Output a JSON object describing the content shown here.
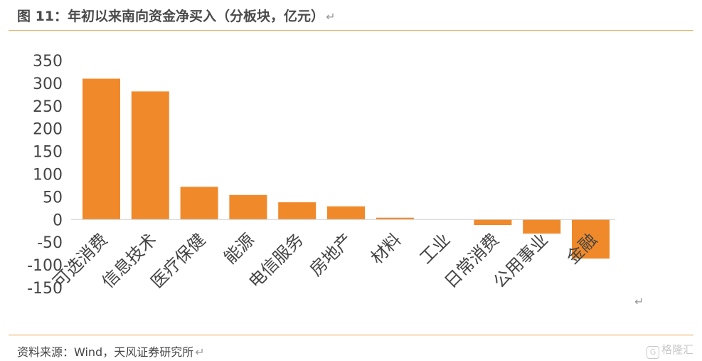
{
  "figure": {
    "title": "图 11：年初以来南向资金净买入（分板块，亿元）",
    "paragraph_mark": "↵",
    "source": "资料来源：Wind，天风证券研究所",
    "watermark": "格隆汇",
    "watermark_icon": "chart-logo-icon"
  },
  "chart_data": {
    "type": "bar",
    "title": "",
    "xlabel": "",
    "ylabel": "",
    "categories": [
      "可选消费",
      "信息技术",
      "医疗保健",
      "能源",
      "电信服务",
      "房地产",
      "材料",
      "工业",
      "日常消费",
      "公用事业",
      "金融"
    ],
    "values": [
      310,
      282,
      72,
      54,
      38,
      29,
      4,
      0,
      -12,
      -31,
      -86
    ],
    "ylim": [
      -150,
      350
    ],
    "yticks": [
      350,
      300,
      250,
      200,
      150,
      100,
      50,
      0,
      -50,
      -100,
      -150
    ],
    "bar_color": "#f0892a",
    "grid": false,
    "legend": "none"
  }
}
